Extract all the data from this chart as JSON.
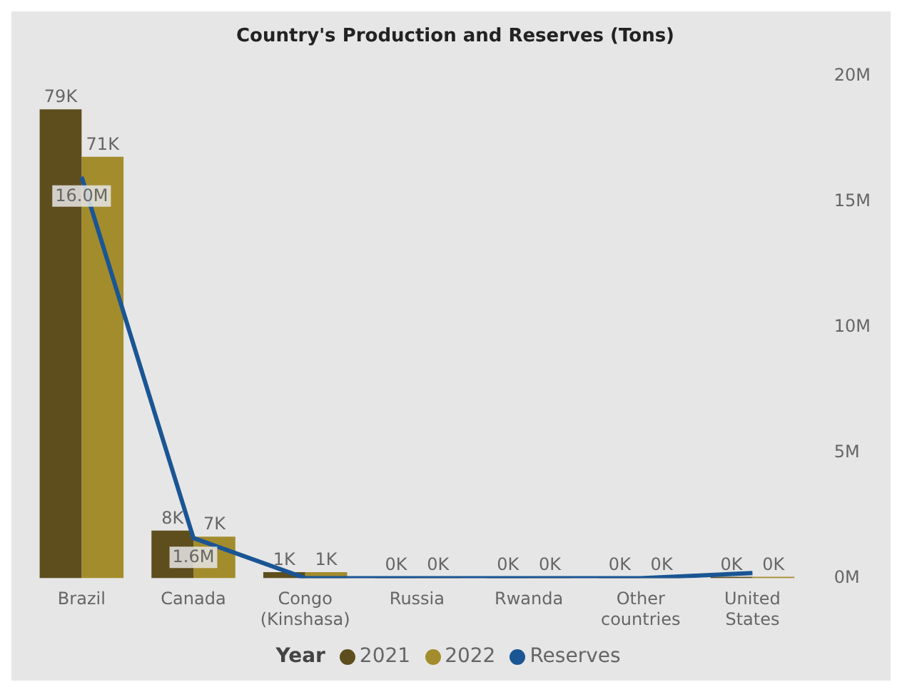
{
  "chart_data": {
    "type": "bar",
    "title": "Country's Production and Reserves (Tons)",
    "categories": [
      "Brazil",
      "Canada",
      "Congo (Kinshasa)",
      "Russia",
      "Rwanda",
      "Other countries",
      "United States"
    ],
    "series": [
      {
        "name": "2021",
        "color": "#5e4e1e",
        "values": [
          79000,
          8000,
          1000,
          0,
          0,
          0,
          0
        ],
        "value_labels": [
          "79K",
          "8K",
          "1K",
          "0K",
          "0K",
          "0K",
          "0K"
        ]
      },
      {
        "name": "2022",
        "color": "#a38c2c",
        "values": [
          71000,
          7000,
          1000,
          0,
          0,
          0,
          0
        ],
        "value_labels": [
          "71K",
          "7K",
          "1K",
          "0K",
          "0K",
          "0K",
          "0K"
        ]
      },
      {
        "name": "Reserves",
        "type": "line",
        "axis": "y2",
        "color": "#1a5594",
        "values": [
          16.0,
          1.6,
          0,
          0,
          0,
          0,
          0.2
        ],
        "value_labels": [
          "16.0M",
          "1.6M",
          null,
          null,
          null,
          null,
          null
        ]
      }
    ],
    "y2lim": [
      0,
      20
    ],
    "y2ticks": [
      {
        "value": 0,
        "label": "0M"
      },
      {
        "value": 5,
        "label": "5M"
      },
      {
        "value": 10,
        "label": "10M"
      },
      {
        "value": 15,
        "label": "15M"
      },
      {
        "value": 20,
        "label": "20M"
      }
    ],
    "legend": "bottom",
    "legend_title": "Year",
    "grid": false,
    "marker": "none"
  }
}
